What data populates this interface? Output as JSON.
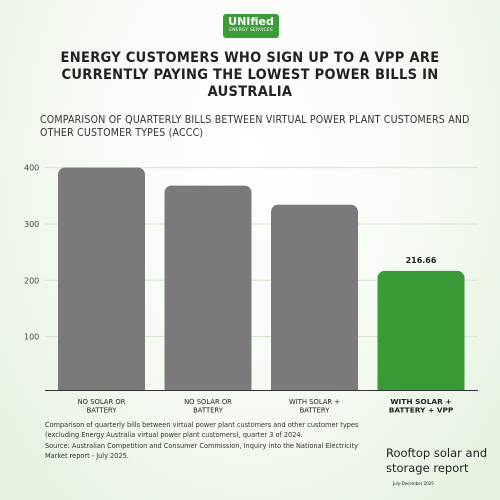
{
  "logo": {
    "name": "UNIfied",
    "tagline": "ENERGY SERVICES"
  },
  "title": "ENERGY CUSTOMERS WHO SIGN UP TO A VPP ARE CURRENTLY PAYING THE LOWEST POWER BILLS IN AUSTRALIA",
  "subtitle": "COMPARISON OF QUARTERLY BILLS BETWEEN VIRTUAL POWER PLANT CUSTOMERS AND OTHER CUSTOMER TYPES (ACCC)",
  "notes": {
    "description": "Comparison of quarterly bills between virtual power plant customers and other customer types (excluding Energy Australia virtual power plant customers), quarter 3 of 2024.",
    "source": "Source: Australian Competition and Consumer Commission, Inquiry into the National Electricity Market report - July 2025."
  },
  "report": {
    "title": "Rooftop solar and storage report",
    "date": "July-December 2025"
  },
  "colors": {
    "grey_bar": "#7a7a7a",
    "green_bar": "#3a9a35",
    "logo": "#3e9b3a",
    "grid": "#d3e6cd"
  },
  "chart_data": {
    "type": "bar",
    "categories": [
      [
        "NO SOLAR OR",
        "BATTERY"
      ],
      [
        "NO SOLAR OR",
        "BATTERY"
      ],
      [
        "WITH SOLAR +",
        "BATTERY"
      ],
      [
        "WITH SOLAR +",
        "BATTERY + VPP"
      ]
    ],
    "values": [
      400,
      368,
      334,
      216.66
    ],
    "bar_colors": [
      "#7a7a7a",
      "#7a7a7a",
      "#7a7a7a",
      "#3a9a35"
    ],
    "highlight_index": 3,
    "data_labels": [
      "",
      "",
      "",
      "216.66"
    ],
    "yticks": [
      100,
      200,
      300,
      400
    ],
    "ylim": [
      0,
      430
    ],
    "grid": true,
    "xlabel": "",
    "ylabel": ""
  }
}
